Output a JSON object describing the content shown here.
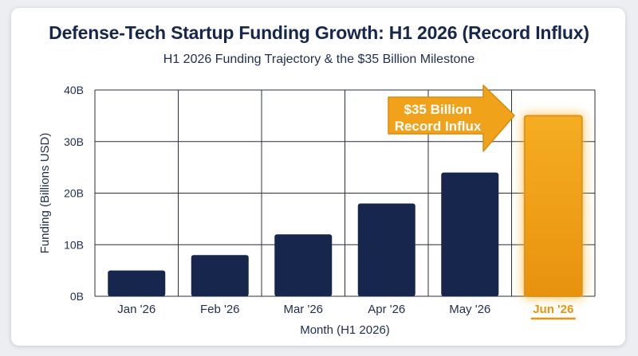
{
  "chart_data": {
    "type": "bar",
    "title": "Defense-Tech Startup Funding Growth: H1 2026 (Record Influx)",
    "subtitle": "H1 2026 Funding Trajectory & the $35 Billion Milestone",
    "xlabel": "Month (H1 2026)",
    "ylabel": "Funding (Billions USD)",
    "ylim": [
      0,
      40
    ],
    "yticks": [
      0,
      10,
      20,
      30,
      40
    ],
    "ytick_labels": [
      "0B",
      "10B",
      "20B",
      "30B",
      "40B"
    ],
    "categories": [
      "Jan '26",
      "Feb '26",
      "Mar '26",
      "Apr '26",
      "May '26",
      "Jun '26"
    ],
    "values": [
      5,
      8,
      12,
      18,
      24,
      35
    ],
    "highlight_index": 5,
    "grid": true,
    "colors": {
      "bar": "#16264d",
      "highlight": "#f2a51a",
      "highlight_edge": "#e39312",
      "highlight_label": "#e8930f",
      "grid": "#2a2f3a"
    },
    "annotation": {
      "lines": [
        "$35 Billion",
        "Record Influx"
      ],
      "type": "arrow-callout"
    }
  }
}
